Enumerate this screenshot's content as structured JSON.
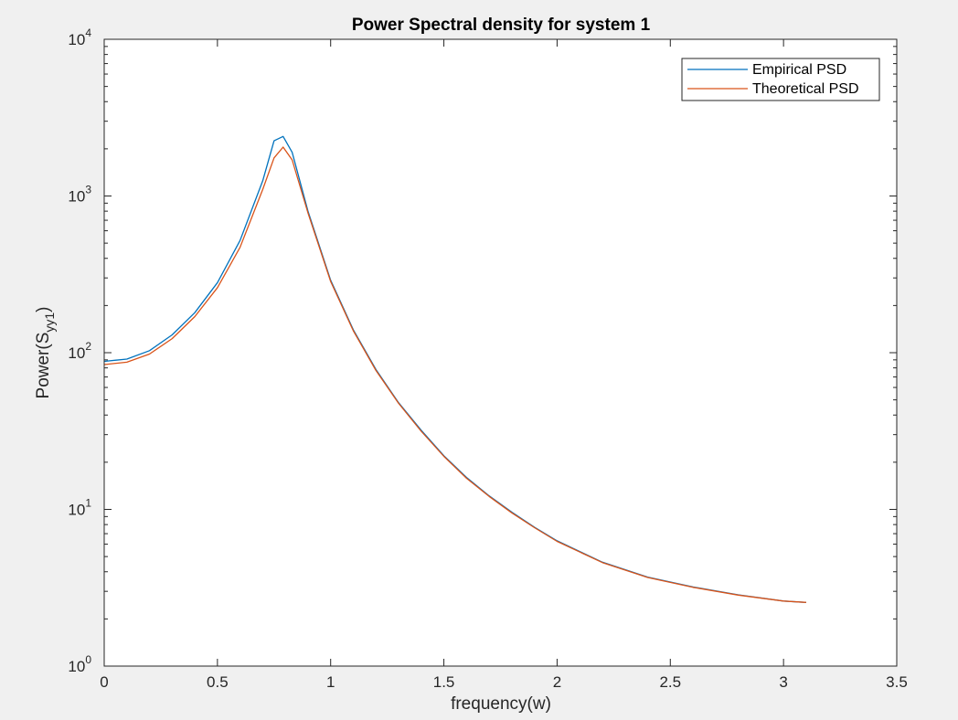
{
  "chart_data": {
    "type": "line",
    "title": "Power Spectral density for system 1",
    "xlabel": "frequency(w)",
    "ylabel": {
      "base": "Power(S",
      "sub": "yy1",
      "close": ")"
    },
    "xlim": [
      0,
      3.5
    ],
    "ylim": [
      1,
      10000
    ],
    "yscale": "log",
    "grid": false,
    "legend_position": "top-right",
    "x_ticks": [
      "0",
      "0.5",
      "1",
      "1.5",
      "2",
      "2.5",
      "3",
      "3.5"
    ],
    "y_ticks": [
      {
        "base": "10",
        "exp": "0"
      },
      {
        "base": "10",
        "exp": "1"
      },
      {
        "base": "10",
        "exp": "2"
      },
      {
        "base": "10",
        "exp": "3"
      },
      {
        "base": "10",
        "exp": "4"
      }
    ],
    "series": [
      {
        "name": "Empirical PSD",
        "color": "#0072bd",
        "points": [
          [
            0.0,
            88
          ],
          [
            0.1,
            91
          ],
          [
            0.2,
            103
          ],
          [
            0.3,
            130
          ],
          [
            0.4,
            180
          ],
          [
            0.5,
            280
          ],
          [
            0.6,
            520
          ],
          [
            0.7,
            1250
          ],
          [
            0.75,
            2250
          ],
          [
            0.79,
            2400
          ],
          [
            0.83,
            1900
          ],
          [
            0.9,
            800
          ],
          [
            1.0,
            290
          ],
          [
            1.1,
            140
          ],
          [
            1.2,
            78
          ],
          [
            1.3,
            48
          ],
          [
            1.4,
            32
          ],
          [
            1.5,
            22
          ],
          [
            1.6,
            16
          ],
          [
            1.7,
            12.2
          ],
          [
            1.8,
            9.6
          ],
          [
            1.9,
            7.7
          ],
          [
            2.0,
            6.3
          ],
          [
            2.2,
            4.6
          ],
          [
            2.4,
            3.7
          ],
          [
            2.6,
            3.2
          ],
          [
            2.8,
            2.85
          ],
          [
            3.0,
            2.6
          ],
          [
            3.1,
            2.55
          ]
        ]
      },
      {
        "name": "Theoretical PSD",
        "color": "#d95319",
        "points": [
          [
            0.0,
            84
          ],
          [
            0.1,
            87
          ],
          [
            0.2,
            98
          ],
          [
            0.3,
            123
          ],
          [
            0.4,
            170
          ],
          [
            0.5,
            260
          ],
          [
            0.6,
            470
          ],
          [
            0.7,
            1100
          ],
          [
            0.75,
            1750
          ],
          [
            0.79,
            2050
          ],
          [
            0.83,
            1700
          ],
          [
            0.9,
            780
          ],
          [
            1.0,
            285
          ],
          [
            1.1,
            138
          ],
          [
            1.2,
            77
          ],
          [
            1.3,
            47.5
          ],
          [
            1.4,
            31.5
          ],
          [
            1.5,
            21.8
          ],
          [
            1.6,
            15.8
          ],
          [
            1.7,
            12.1
          ],
          [
            1.8,
            9.5
          ],
          [
            1.9,
            7.65
          ],
          [
            2.0,
            6.25
          ],
          [
            2.2,
            4.58
          ],
          [
            2.4,
            3.68
          ],
          [
            2.6,
            3.18
          ],
          [
            2.8,
            2.84
          ],
          [
            3.0,
            2.6
          ],
          [
            3.1,
            2.55
          ]
        ]
      }
    ]
  }
}
